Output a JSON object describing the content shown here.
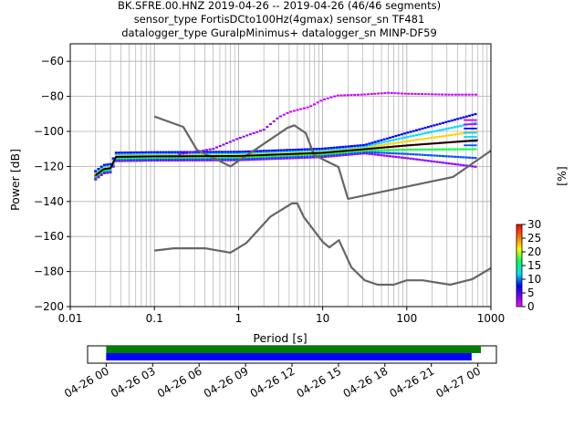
{
  "title_lines": [
    "BK.SFRE.00.HNZ   2019-04-26 -- 2019-04-26  (46/46 segments)",
    "sensor_type FortisDCto100Hz(4gmax) sensor_sn TF481",
    "datalogger_type GuralpMinimus+ datalogger_sn MINP-DF59"
  ],
  "chart_data": {
    "type": "heatmap",
    "xlabel": "Period [s]",
    "ylabel": "Power [dB]",
    "xscale": "log",
    "xlim": [
      0.01,
      1000
    ],
    "ylim": [
      -200,
      -50
    ],
    "x_ticks": [
      "0.01",
      "0.1",
      "1",
      "10",
      "100",
      "1000"
    ],
    "x_tick_values": [
      0.01,
      0.1,
      1,
      10,
      100,
      1000
    ],
    "y_ticks": [
      "−60",
      "−80",
      "−100",
      "−120",
      "−140",
      "−160",
      "−180",
      "−200"
    ],
    "y_tick_values": [
      -60,
      -80,
      -100,
      -120,
      -140,
      -160,
      -180,
      -200
    ],
    "grid": true,
    "series": [
      {
        "kind": "noise_model_high",
        "color": "#666666",
        "points": [
          [
            0.1,
            -91.5
          ],
          [
            0.22,
            -97.4
          ],
          [
            0.32,
            -110.5
          ],
          [
            0.8,
            -120
          ],
          [
            3.8,
            -98
          ],
          [
            4.6,
            -96.5
          ],
          [
            6.3,
            -101
          ],
          [
            7.9,
            -113.5
          ],
          [
            15.4,
            -120.3
          ],
          [
            20,
            -138.5
          ],
          [
            354.8,
            -126
          ],
          [
            1000,
            -111
          ]
        ]
      },
      {
        "kind": "noise_model_low",
        "color": "#666666",
        "points": [
          [
            0.1,
            -168
          ],
          [
            0.17,
            -166.7
          ],
          [
            0.4,
            -166.7
          ],
          [
            0.8,
            -169.2
          ],
          [
            1.24,
            -163.7
          ],
          [
            2.4,
            -148.6
          ],
          [
            4.3,
            -141.1
          ],
          [
            5,
            -141.1
          ],
          [
            6,
            -149
          ],
          [
            10,
            -163
          ],
          [
            12,
            -166.2
          ],
          [
            15.6,
            -162.1
          ],
          [
            21.9,
            -177.5
          ],
          [
            31.6,
            -185
          ],
          [
            45,
            -187.5
          ],
          [
            70,
            -187.5
          ],
          [
            100,
            -185
          ],
          [
            154,
            -185
          ],
          [
            328,
            -187.5
          ],
          [
            600,
            -184.4
          ],
          [
            1000,
            -178
          ]
        ]
      },
      {
        "kind": "mean_psd",
        "color": "#000000",
        "points": [
          [
            0.02,
            -125
          ],
          [
            0.025,
            -121.5
          ],
          [
            0.03,
            -121
          ],
          [
            0.035,
            -114.5
          ],
          [
            0.1,
            -114.2
          ],
          [
            1,
            -114
          ],
          [
            10,
            -112.2
          ],
          [
            100,
            -108
          ],
          [
            700,
            -105
          ]
        ]
      },
      {
        "kind": "upper_spread",
        "color": "#cc00ff",
        "points": [
          [
            0.2,
            -113
          ],
          [
            0.5,
            -110
          ],
          [
            1,
            -104
          ],
          [
            2,
            -99
          ],
          [
            3,
            -92
          ],
          [
            4,
            -89
          ],
          [
            7,
            -86
          ],
          [
            10,
            -82
          ],
          [
            15,
            -79.5
          ],
          [
            30,
            -79
          ],
          [
            60,
            -78
          ],
          [
            100,
            -78.5
          ],
          [
            300,
            -79
          ],
          [
            700,
            -79
          ]
        ]
      }
    ],
    "colorbar": {
      "label": "[%]",
      "range": [
        0,
        30
      ],
      "ticks": [
        "0",
        "5",
        "10",
        "15",
        "20",
        "25",
        "30"
      ],
      "tick_values": [
        0,
        5,
        10,
        15,
        20,
        25,
        30
      ]
    }
  },
  "timeline": {
    "ticks": [
      "04-26 00",
      "04-26 03",
      "04-26 06",
      "04-26 09",
      "04-26 12",
      "04-26 15",
      "04-26 18",
      "04-26 21",
      "04-27 00"
    ],
    "tick_hours": [
      0,
      3,
      6,
      9,
      12,
      15,
      18,
      21,
      24
    ],
    "range_hours": [
      -1.2,
      25.2
    ],
    "bars": [
      {
        "name": "data",
        "color": "#008000",
        "start_h": 0,
        "end_h": 24.2
      },
      {
        "name": "psd",
        "color": "#0000ff",
        "start_h": 0,
        "end_h": 23.6
      }
    ]
  }
}
